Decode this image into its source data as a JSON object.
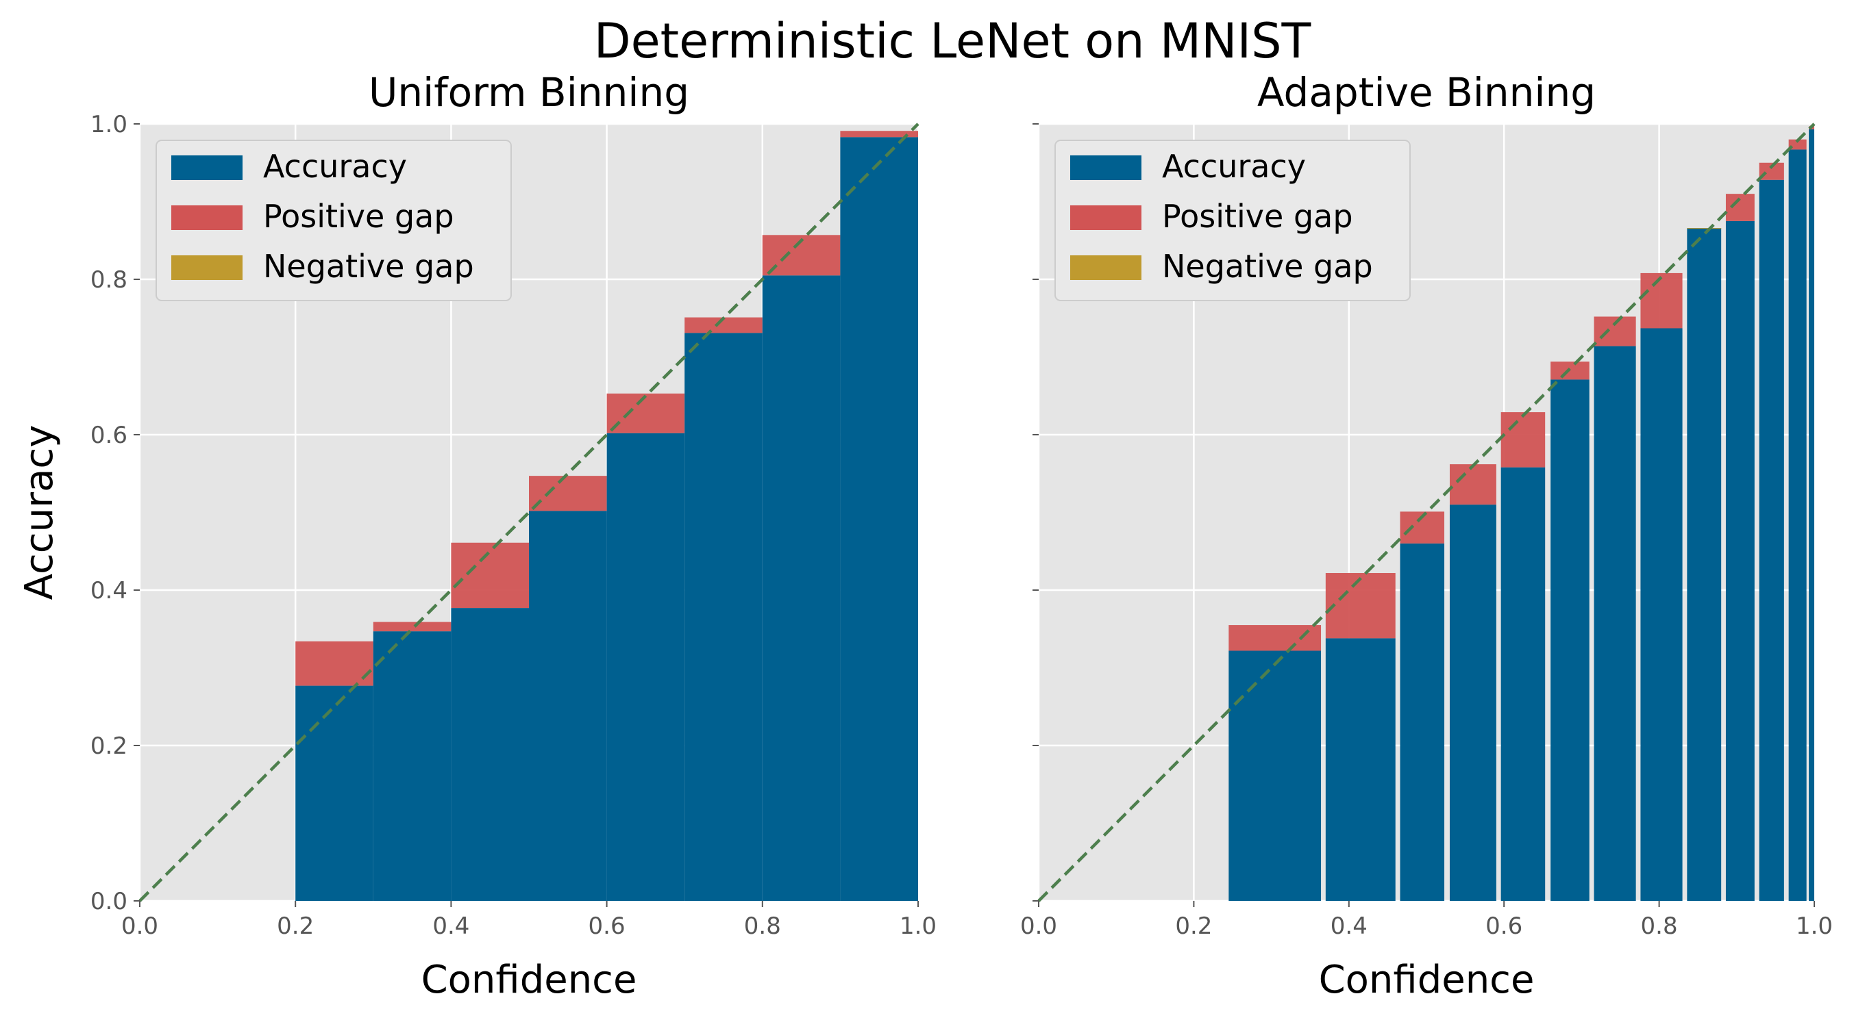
{
  "figure": {
    "suptitle": "Deterministic LeNet on MNIST"
  },
  "colors": {
    "background": "#e5e5e5",
    "grid": "#ffffff",
    "accuracy": "#006090",
    "positive_gap": "#d15454",
    "negative_gap": "#bf9a2f",
    "diagonal": "#4d7f4d",
    "tick_text": "#555555",
    "legend_bg": "#e9e9e9"
  },
  "chart_data": [
    {
      "type": "bar",
      "title": "Uniform Binning",
      "xlabel": "Confidence",
      "ylabel": "Accuracy",
      "xlim": [
        0.0,
        1.0
      ],
      "ylim": [
        0.0,
        1.0
      ],
      "xticks": [
        "0.0",
        "0.2",
        "0.4",
        "0.6",
        "0.8",
        "1.0"
      ],
      "yticks": [
        "0.0",
        "0.2",
        "0.4",
        "0.6",
        "0.8",
        "1.0"
      ],
      "grid": true,
      "legend_position": "top-left",
      "legend": [
        "Accuracy",
        "Positive gap",
        "Negative gap"
      ],
      "diagonal": true,
      "bins": [
        {
          "left": 0.2,
          "right": 0.3,
          "accuracy": 0.277,
          "confidence": 0.334
        },
        {
          "left": 0.3,
          "right": 0.4,
          "accuracy": 0.347,
          "confidence": 0.359
        },
        {
          "left": 0.4,
          "right": 0.5,
          "accuracy": 0.377,
          "confidence": 0.461
        },
        {
          "left": 0.5,
          "right": 0.6,
          "accuracy": 0.502,
          "confidence": 0.547
        },
        {
          "left": 0.6,
          "right": 0.7,
          "accuracy": 0.602,
          "confidence": 0.653
        },
        {
          "left": 0.7,
          "right": 0.8,
          "accuracy": 0.731,
          "confidence": 0.751
        },
        {
          "left": 0.8,
          "right": 0.9,
          "accuracy": 0.805,
          "confidence": 0.857
        },
        {
          "left": 0.9,
          "right": 1.0,
          "accuracy": 0.983,
          "confidence": 0.991
        }
      ]
    },
    {
      "type": "bar",
      "title": "Adaptive Binning",
      "xlabel": "Confidence",
      "ylabel": "",
      "xlim": [
        0.0,
        1.0
      ],
      "ylim": [
        0.0,
        1.0
      ],
      "xticks": [
        "0.0",
        "0.2",
        "0.4",
        "0.6",
        "0.8",
        "1.0"
      ],
      "yticks": [],
      "grid": true,
      "legend_position": "top-left",
      "legend": [
        "Accuracy",
        "Positive gap",
        "Negative gap"
      ],
      "diagonal": true,
      "bins": [
        {
          "left": 0.245,
          "right": 0.364,
          "accuracy": 0.322,
          "confidence": 0.355
        },
        {
          "left": 0.37,
          "right": 0.46,
          "accuracy": 0.338,
          "confidence": 0.422
        },
        {
          "left": 0.466,
          "right": 0.523,
          "accuracy": 0.46,
          "confidence": 0.501
        },
        {
          "left": 0.53,
          "right": 0.59,
          "accuracy": 0.51,
          "confidence": 0.562
        },
        {
          "left": 0.596,
          "right": 0.653,
          "accuracy": 0.558,
          "confidence": 0.629
        },
        {
          "left": 0.66,
          "right": 0.71,
          "accuracy": 0.671,
          "confidence": 0.694
        },
        {
          "left": 0.716,
          "right": 0.77,
          "accuracy": 0.714,
          "confidence": 0.752
        },
        {
          "left": 0.776,
          "right": 0.83,
          "accuracy": 0.737,
          "confidence": 0.808
        },
        {
          "left": 0.836,
          "right": 0.88,
          "accuracy": 0.866,
          "confidence": 0.865
        },
        {
          "left": 0.886,
          "right": 0.923,
          "accuracy": 0.875,
          "confidence": 0.91
        },
        {
          "left": 0.929,
          "right": 0.961,
          "accuracy": 0.928,
          "confidence": 0.95
        },
        {
          "left": 0.967,
          "right": 0.99,
          "accuracy": 0.967,
          "confidence": 0.98
        },
        {
          "left": 0.993,
          "right": 1.0,
          "accuracy": 0.993,
          "confidence": 0.997
        }
      ]
    }
  ]
}
